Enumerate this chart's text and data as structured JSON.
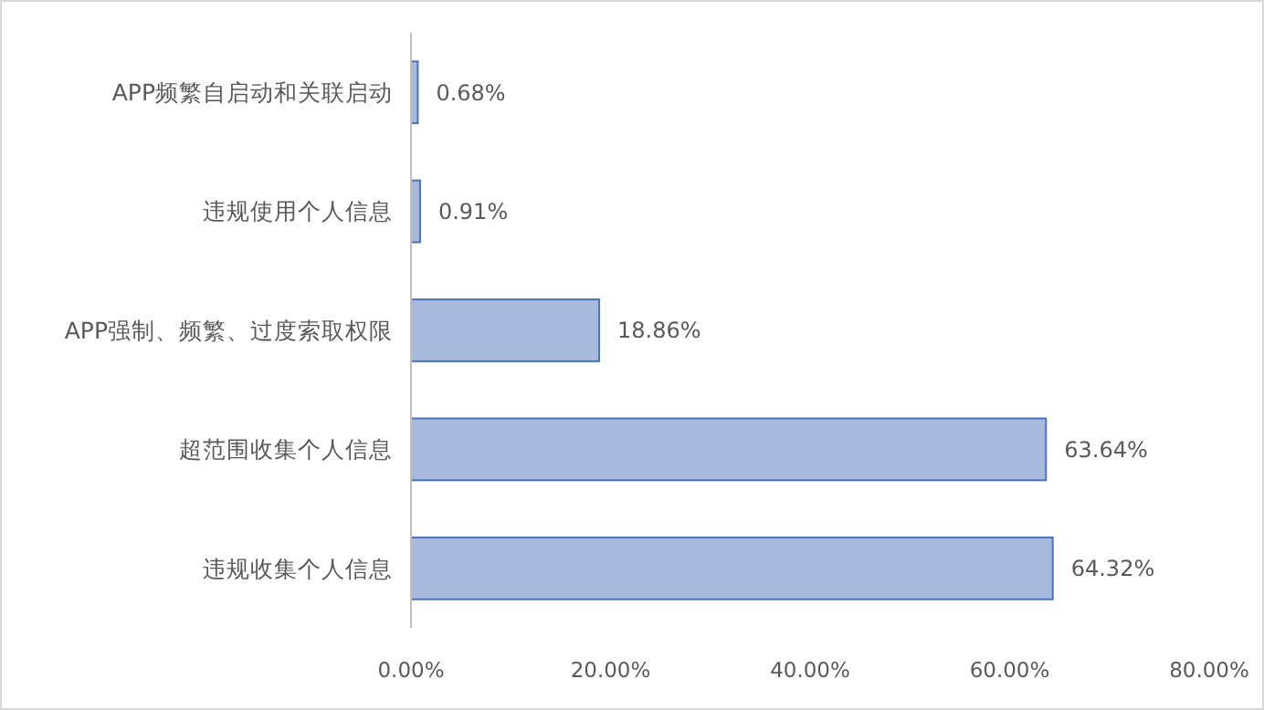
{
  "chart_data": {
    "type": "bar",
    "orientation": "horizontal",
    "categories": [
      "APP频繁自启动和关联启动",
      "违规使用个人信息",
      "APP强制、频繁、过度索取权限",
      "超范围收集个人信息",
      "违规收集个人信息"
    ],
    "values": [
      0.68,
      0.91,
      18.86,
      63.64,
      64.32
    ],
    "value_labels": [
      "0.68%",
      "0.91%",
      "18.86%",
      "63.64%",
      "64.32%"
    ],
    "color": "#a7b9dc",
    "xlim": [
      0,
      80
    ],
    "xticks": [
      {
        "value": 0,
        "label": "0.00%"
      },
      {
        "value": 20,
        "label": "20.00%"
      },
      {
        "value": 40,
        "label": "40.00%"
      },
      {
        "value": 60,
        "label": "60.00%"
      },
      {
        "value": 80,
        "label": "80.00%"
      }
    ],
    "grid": false
  }
}
